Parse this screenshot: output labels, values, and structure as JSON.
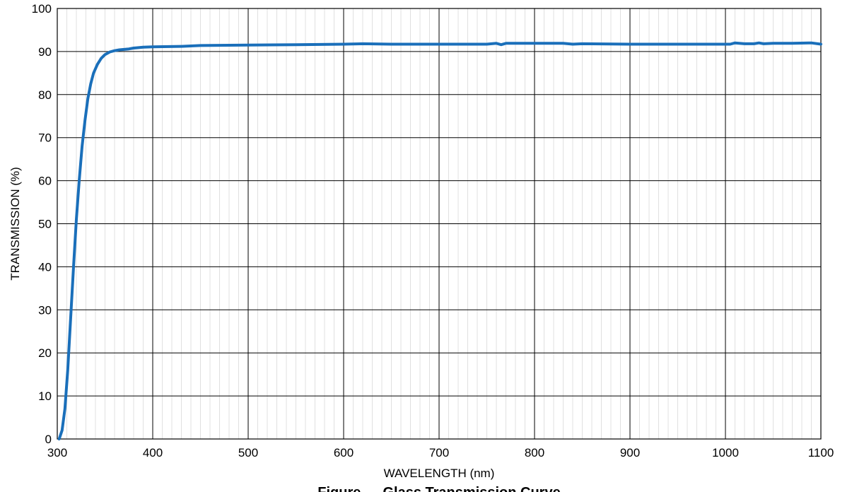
{
  "chart_data": {
    "type": "line",
    "title": "",
    "caption": "Figure — Glass Transmission Curve",
    "xlabel": "WAVELENGTH (nm)",
    "ylabel": "TRANSMISSION (%)",
    "xlim": [
      300,
      1100
    ],
    "ylim": [
      0,
      100
    ],
    "xticks": [
      300,
      400,
      500,
      600,
      700,
      800,
      900,
      1000,
      1100
    ],
    "yticks": [
      0,
      10,
      20,
      30,
      40,
      50,
      60,
      70,
      80,
      90,
      100
    ],
    "grid": true,
    "minor_x_step": 10,
    "line_color": "#1a6fba",
    "series": [
      {
        "x": [
          302,
          305,
          308,
          311,
          314,
          317,
          320,
          323,
          326,
          329,
          332,
          335,
          338,
          342,
          346,
          350,
          355,
          360,
          365,
          370,
          375,
          380,
          390,
          400,
          430,
          450,
          500,
          550,
          600,
          620,
          650,
          700,
          750,
          760,
          765,
          770,
          780,
          800,
          830,
          840,
          850,
          900,
          950,
          1000,
          1005,
          1010,
          1020,
          1030,
          1035,
          1040,
          1050,
          1070,
          1090,
          1100
        ],
        "values": [
          0,
          2,
          7,
          16,
          28,
          40,
          51,
          60,
          68,
          74,
          79,
          82.5,
          85,
          87,
          88.4,
          89.3,
          89.9,
          90.2,
          90.4,
          90.5,
          90.6,
          90.8,
          91.0,
          91.1,
          91.2,
          91.4,
          91.5,
          91.6,
          91.7,
          91.8,
          91.7,
          91.7,
          91.7,
          91.9,
          91.6,
          91.9,
          91.9,
          91.9,
          91.9,
          91.7,
          91.8,
          91.7,
          91.7,
          91.7,
          91.7,
          92.0,
          91.8,
          91.8,
          92.0,
          91.8,
          91.9,
          91.9,
          92.0,
          91.7
        ]
      }
    ]
  }
}
